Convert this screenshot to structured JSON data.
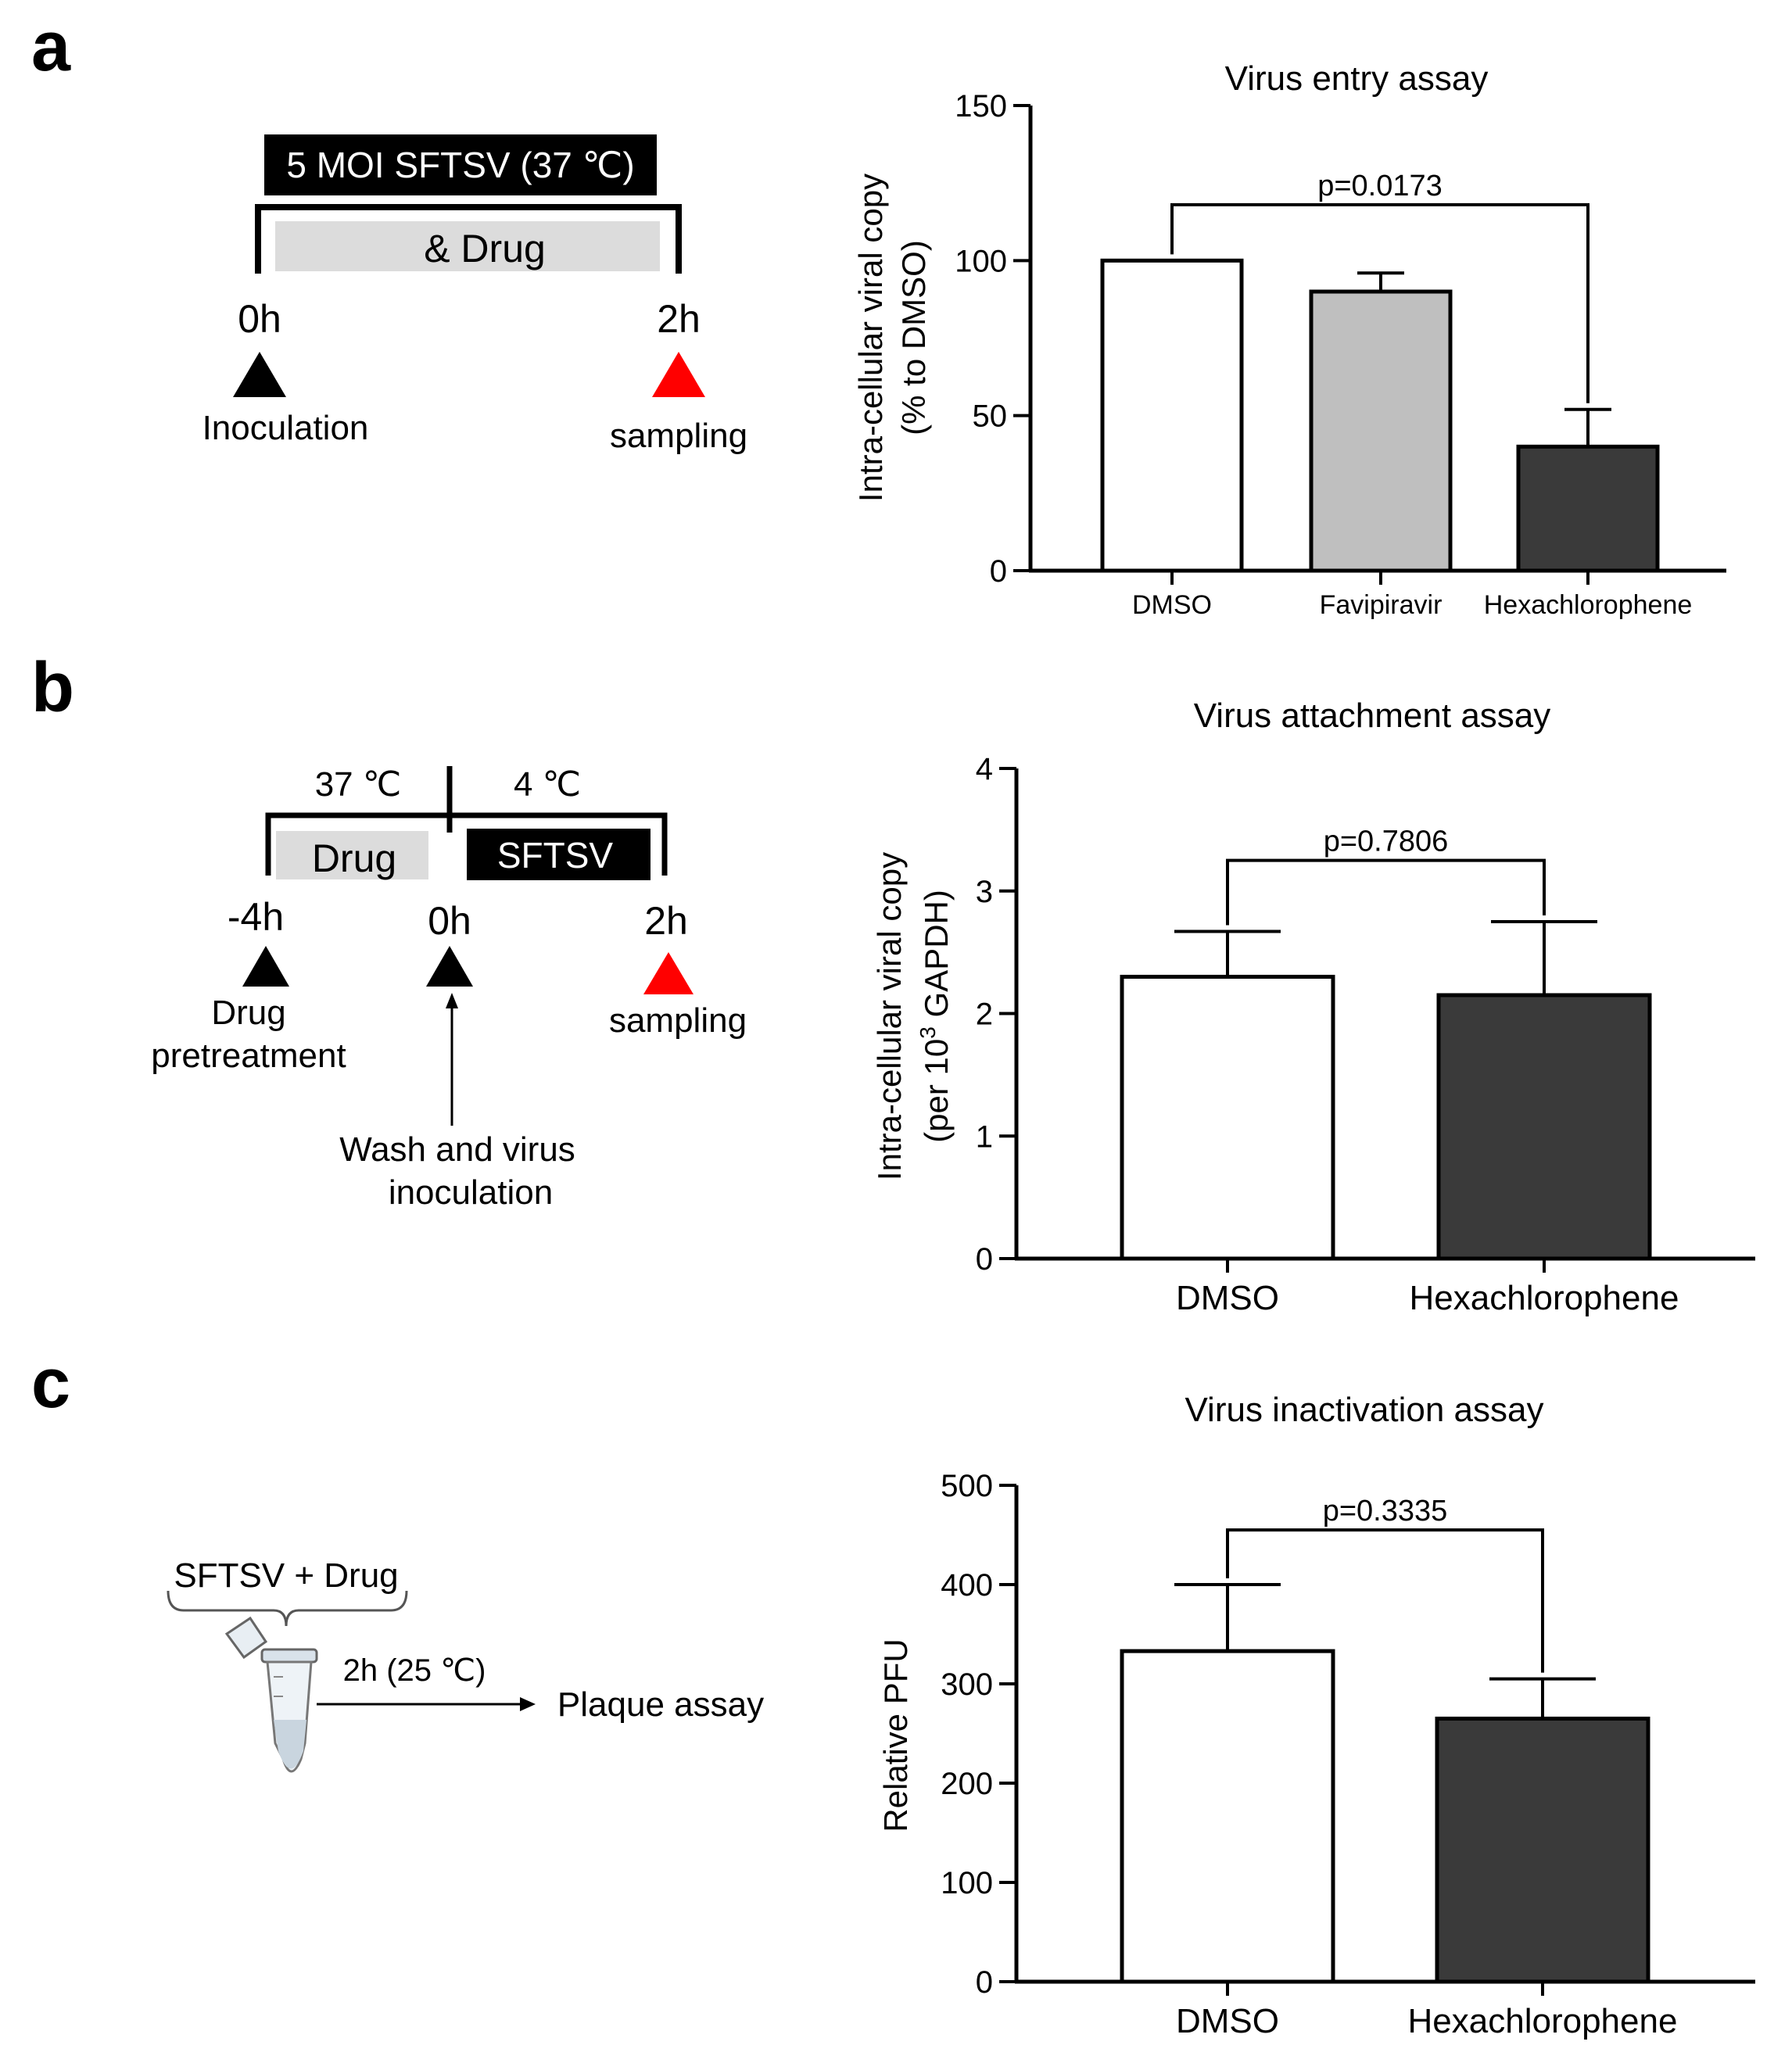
{
  "panel_letters": {
    "a": "a",
    "b": "b",
    "c": "c"
  },
  "schematic_a": {
    "top_box": "5 MOI SFTSV (37 ℃)",
    "drug_box": "& Drug",
    "t0": "0h",
    "t1": "2h",
    "t0_label": "Inoculation",
    "t1_label": "sampling"
  },
  "schematic_b": {
    "temp_left": "37 ℃",
    "temp_right": "4 ℃",
    "drug_box": "Drug",
    "virus_box": "SFTSV",
    "t_minus4": "-4h",
    "t0": "0h",
    "t2": "2h",
    "label_pretreat_1": "Drug",
    "label_pretreat_2": "pretreatment",
    "label_sampling": "sampling",
    "label_wash_1": "Wash and virus",
    "label_wash_2": "inoculation"
  },
  "schematic_c": {
    "mix_label": "SFTSV + Drug",
    "incubation": "2h (25 ℃)",
    "result": "Plaque assay"
  },
  "colors": {
    "black_marker": "#000000",
    "red_marker": "#ff0000",
    "drug_gray": "#dcdcdc",
    "bar_white": "#ffffff",
    "bar_gray": "#bfbfbf",
    "bar_dark": "#3a3a3a"
  },
  "chart_data": [
    {
      "type": "bar",
      "title": "Virus entry assay",
      "categories": [
        "DMSO",
        "Favipiravir",
        "Hexachlorophene"
      ],
      "values": [
        100,
        90,
        40
      ],
      "errors": [
        0,
        6,
        12
      ],
      "ylabel_line1": "Intra-cellular viral copy",
      "ylabel_line2": "(% to DMSO)",
      "ylim": [
        0,
        150
      ],
      "yticks": [
        0,
        50,
        100,
        150
      ],
      "comparison": {
        "from": "DMSO",
        "to": "Hexachlorophene",
        "label": "p=0.0173",
        "bracket_y": 118
      }
    },
    {
      "type": "bar",
      "title": "Virus attachment assay",
      "categories": [
        "DMSO",
        "Hexachlorophene"
      ],
      "values": [
        2.3,
        2.15
      ],
      "errors": [
        0.37,
        0.6
      ],
      "ylabel_line1": "Intra-cellular viral copy",
      "ylabel_line2_pre": "(per 10",
      "ylabel_line2_sup": "3",
      "ylabel_line2_post": " GAPDH)",
      "ylim": [
        0,
        4
      ],
      "yticks": [
        0,
        1,
        2,
        3,
        4
      ],
      "comparison": {
        "from": "DMSO",
        "to": "Hexachlorophene",
        "label": "p=0.7806",
        "bracket_y": 3.25
      }
    },
    {
      "type": "bar",
      "title": "Virus inactivation assay",
      "categories": [
        "DMSO",
        "Hexachlorophene"
      ],
      "values": [
        333,
        265
      ],
      "errors": [
        67,
        40
      ],
      "ylabel": "Relative PFU",
      "ylim": [
        0,
        500
      ],
      "yticks": [
        0,
        100,
        200,
        300,
        400,
        500
      ],
      "comparison": {
        "from": "DMSO",
        "to": "Hexachlorophene",
        "label": "p=0.3335",
        "bracket_y": 455
      }
    }
  ]
}
